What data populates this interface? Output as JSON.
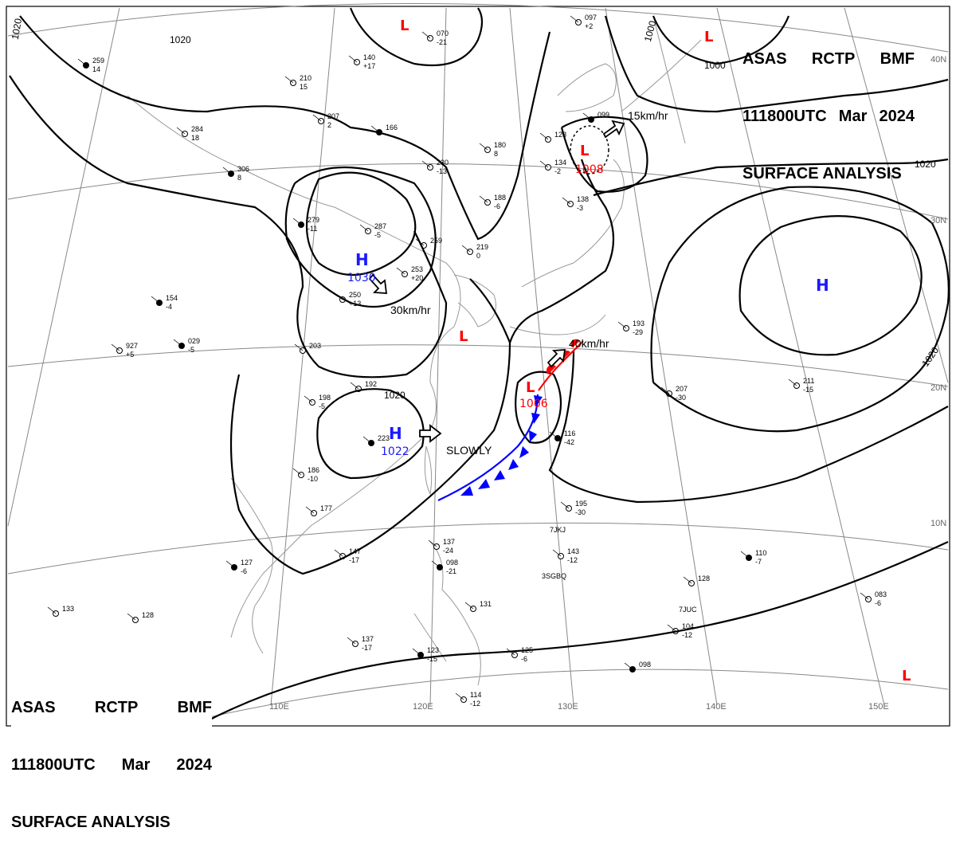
{
  "header": {
    "line1": [
      "ASAS",
      "RCTP",
      "BMF"
    ],
    "line2": [
      "111800UTC",
      "Mar",
      "2024"
    ],
    "line3": "SURFACE ANALYSIS"
  },
  "colors": {
    "high": "#1a1aff",
    "low": "#ff0000",
    "front": "#0000ff",
    "isobar": "#000000",
    "grid": "#888888"
  },
  "lat_labels": [
    "40N",
    "30N",
    "20N",
    "10N"
  ],
  "lon_labels": [
    "110E",
    "120E",
    "130E",
    "140E",
    "150E"
  ],
  "isobar_labels": [
    "1020",
    "1020",
    "1000",
    "1000",
    "1020",
    "1020",
    "1020"
  ],
  "pressure_centers": [
    {
      "type": "H",
      "value": "1030"
    },
    {
      "type": "H",
      "value": "1022"
    },
    {
      "type": "H",
      "value": ""
    },
    {
      "type": "L",
      "value": "1008"
    },
    {
      "type": "L",
      "value": "1006"
    },
    {
      "type": "L",
      "value": ""
    },
    {
      "type": "L",
      "value": ""
    },
    {
      "type": "L",
      "value": ""
    },
    {
      "type": "L",
      "value": ""
    }
  ],
  "motion_labels": [
    "15km/hr",
    "30km/hr",
    "40km/hr",
    "SLOWLY"
  ],
  "station_codes": [
    "7JKJ",
    "3SGBQ",
    "7JUC"
  ],
  "stations": [
    [
      "259",
      "14"
    ],
    [
      "210",
      "15"
    ],
    [
      "207",
      "2"
    ],
    [
      "284",
      "18"
    ],
    [
      "306",
      "8"
    ],
    [
      "180",
      "8"
    ],
    [
      "230",
      "-13"
    ],
    [
      "188",
      "-6"
    ],
    [
      "279",
      "-11"
    ],
    [
      "287",
      "-5"
    ],
    [
      "253",
      "+20"
    ],
    [
      "250",
      "+13"
    ],
    [
      "154",
      "-4"
    ],
    [
      "203",
      ""
    ],
    [
      "192",
      ""
    ],
    [
      "198",
      "-5"
    ],
    [
      "223",
      ""
    ],
    [
      "186",
      "-10"
    ],
    [
      "177",
      ""
    ],
    [
      "147",
      "-17"
    ],
    [
      "127",
      "-6"
    ],
    [
      "133",
      ""
    ],
    [
      "128",
      ""
    ],
    [
      "137",
      "-17"
    ],
    [
      "123",
      "-15"
    ],
    [
      "114",
      "-12"
    ],
    [
      "125",
      "-6"
    ],
    [
      "131",
      ""
    ],
    [
      "098",
      "-21"
    ],
    [
      "137",
      "-24"
    ],
    [
      "143",
      "-12"
    ],
    [
      "195",
      "-30"
    ],
    [
      "116",
      "-42"
    ],
    [
      "207",
      "-30"
    ],
    [
      "211",
      "-15"
    ],
    [
      "193",
      "-29"
    ],
    [
      "110",
      "-7"
    ],
    [
      "128",
      ""
    ],
    [
      "104",
      "-12"
    ],
    [
      "083",
      "-6"
    ],
    [
      "098",
      ""
    ],
    [
      "134",
      "-2"
    ],
    [
      "138",
      "-3"
    ],
    [
      "128",
      ""
    ],
    [
      "099",
      ""
    ],
    [
      "097",
      "+2"
    ],
    [
      "219",
      "0"
    ],
    [
      "259",
      ""
    ],
    [
      "166",
      ""
    ],
    [
      "070",
      "-21"
    ],
    [
      "140",
      "+17"
    ],
    [
      "927",
      "+5"
    ],
    [
      "029",
      "-5"
    ]
  ]
}
